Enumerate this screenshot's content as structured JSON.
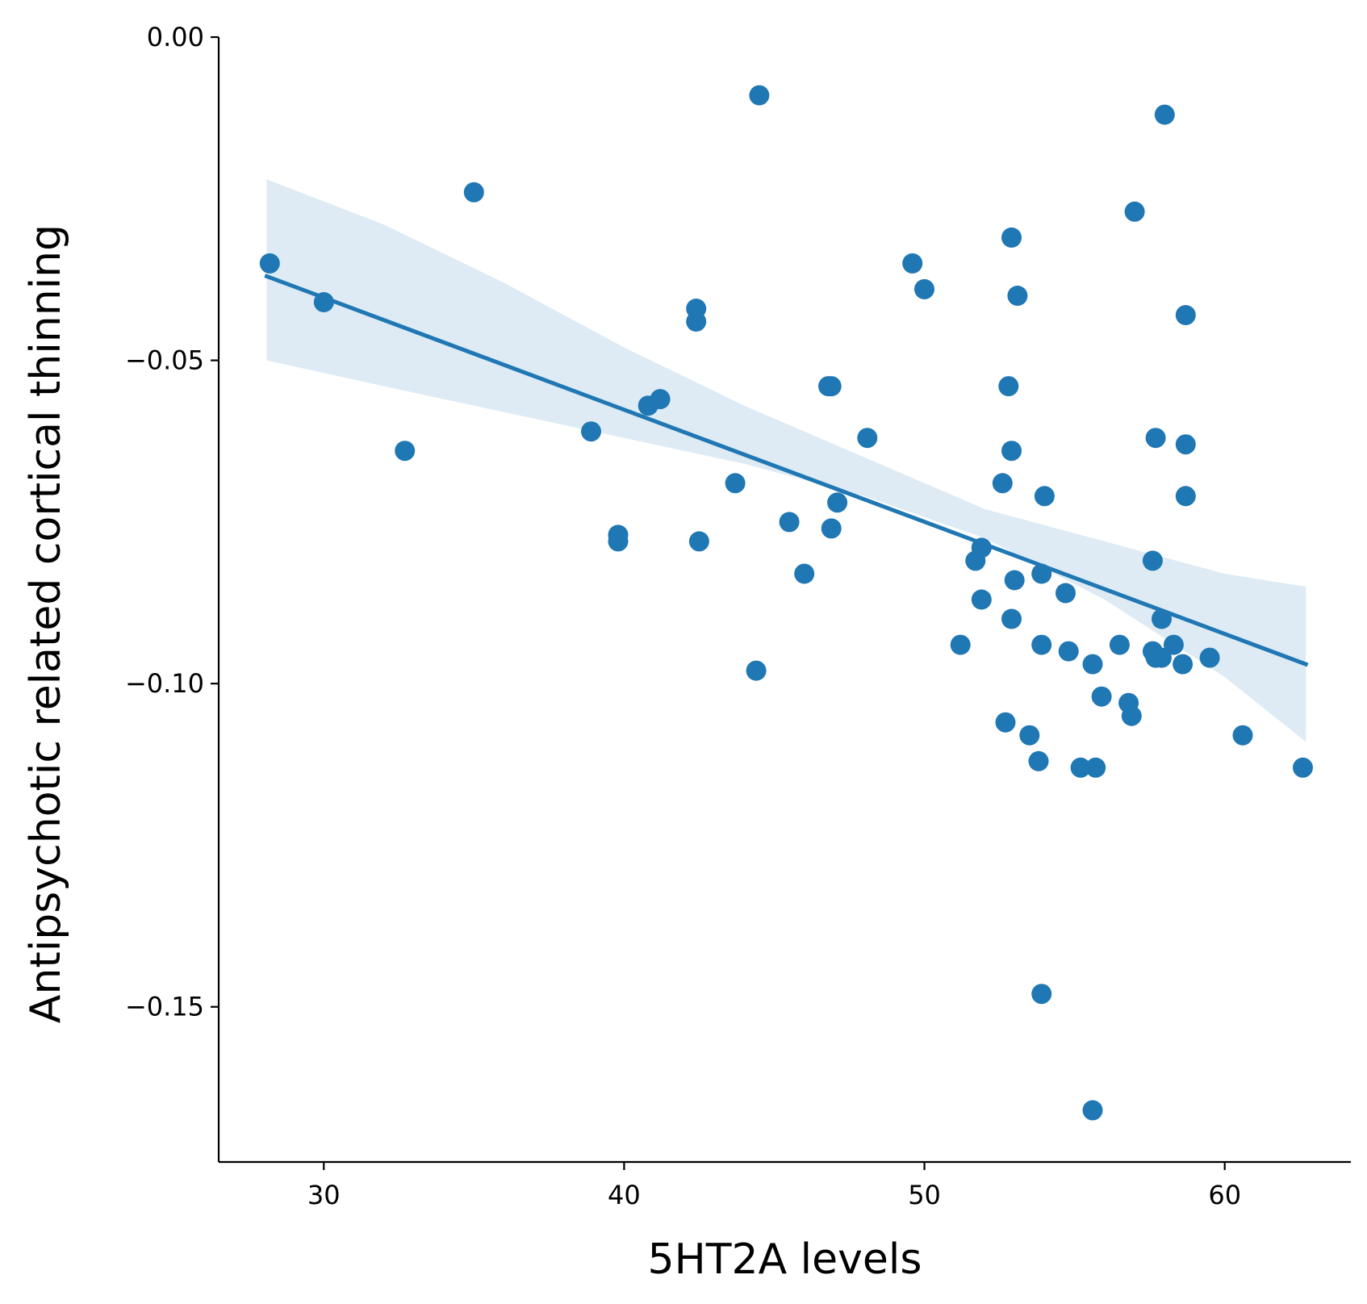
{
  "chart_data": {
    "type": "scatter",
    "title": "",
    "xlabel": "5HT2A levels",
    "ylabel": "Antipsychotic related cortical thinning",
    "xlim": [
      26.5,
      64.2
    ],
    "ylim": [
      -0.174,
      0.0
    ],
    "xticks": [
      30,
      40,
      50,
      60
    ],
    "yticks": [
      0.0,
      -0.05,
      -0.1,
      -0.15
    ],
    "xtick_labels": [
      "30",
      "40",
      "50",
      "60"
    ],
    "ytick_labels": [
      "0.00",
      "−0.05",
      "−0.10",
      "−0.15"
    ],
    "grid": false,
    "legend": "none",
    "colors": {
      "points": "#1f77b4",
      "line": "#1f77b4",
      "band": "#1f77b4"
    },
    "series": [
      {
        "points": [
          [
            28.2,
            -0.035
          ],
          [
            30.0,
            -0.041
          ],
          [
            32.7,
            -0.064
          ],
          [
            35.0,
            -0.024
          ],
          [
            38.9,
            -0.061
          ],
          [
            39.8,
            -0.077
          ],
          [
            39.8,
            -0.078
          ],
          [
            40.8,
            -0.057
          ],
          [
            41.2,
            -0.056
          ],
          [
            42.4,
            -0.042
          ],
          [
            42.4,
            -0.044
          ],
          [
            42.5,
            -0.078
          ],
          [
            43.7,
            -0.069
          ],
          [
            44.4,
            -0.098
          ],
          [
            44.5,
            -0.009
          ],
          [
            45.5,
            -0.075
          ],
          [
            46.0,
            -0.083
          ],
          [
            46.8,
            -0.054
          ],
          [
            46.9,
            -0.054
          ],
          [
            46.9,
            -0.076
          ],
          [
            47.1,
            -0.072
          ],
          [
            48.1,
            -0.062
          ],
          [
            49.6,
            -0.035
          ],
          [
            50.0,
            -0.039
          ],
          [
            51.2,
            -0.094
          ],
          [
            51.7,
            -0.081
          ],
          [
            51.9,
            -0.079
          ],
          [
            51.9,
            -0.087
          ],
          [
            52.6,
            -0.069
          ],
          [
            52.7,
            -0.106
          ],
          [
            52.8,
            -0.054
          ],
          [
            52.9,
            -0.031
          ],
          [
            52.9,
            -0.064
          ],
          [
            52.9,
            -0.09
          ],
          [
            53.0,
            -0.084
          ],
          [
            53.1,
            -0.04
          ],
          [
            53.5,
            -0.108
          ],
          [
            53.8,
            -0.112
          ],
          [
            53.9,
            -0.083
          ],
          [
            53.9,
            -0.094
          ],
          [
            53.9,
            -0.148
          ],
          [
            54.0,
            -0.071
          ],
          [
            54.7,
            -0.086
          ],
          [
            54.8,
            -0.095
          ],
          [
            55.2,
            -0.113
          ],
          [
            55.6,
            -0.166
          ],
          [
            55.6,
            -0.097
          ],
          [
            55.7,
            -0.113
          ],
          [
            55.9,
            -0.102
          ],
          [
            56.5,
            -0.094
          ],
          [
            56.8,
            -0.103
          ],
          [
            56.9,
            -0.105
          ],
          [
            57.0,
            -0.027
          ],
          [
            57.6,
            -0.081
          ],
          [
            57.6,
            -0.095
          ],
          [
            57.7,
            -0.062
          ],
          [
            57.7,
            -0.096
          ],
          [
            57.9,
            -0.09
          ],
          [
            57.9,
            -0.096
          ],
          [
            58.0,
            -0.012
          ],
          [
            58.3,
            -0.094
          ],
          [
            58.6,
            -0.097
          ],
          [
            58.7,
            -0.043
          ],
          [
            58.7,
            -0.063
          ],
          [
            58.7,
            -0.071
          ],
          [
            59.5,
            -0.096
          ],
          [
            60.6,
            -0.108
          ],
          [
            62.6,
            -0.113
          ]
        ]
      }
    ],
    "regression": {
      "x": [
        28.1,
        62.7
      ],
      "y": [
        -0.037,
        -0.097
      ]
    },
    "confidence_band": {
      "x": [
        28.1,
        32.0,
        36.0,
        40.0,
        44.0,
        48.0,
        52.0,
        56.0,
        60.0,
        62.7
      ],
      "upper": [
        -0.022,
        -0.029,
        -0.038,
        -0.048,
        -0.057,
        -0.065,
        -0.073,
        -0.078,
        -0.083,
        -0.085
      ],
      "lower": [
        -0.05,
        -0.054,
        -0.058,
        -0.062,
        -0.066,
        -0.071,
        -0.0775,
        -0.087,
        -0.099,
        -0.109
      ]
    }
  }
}
